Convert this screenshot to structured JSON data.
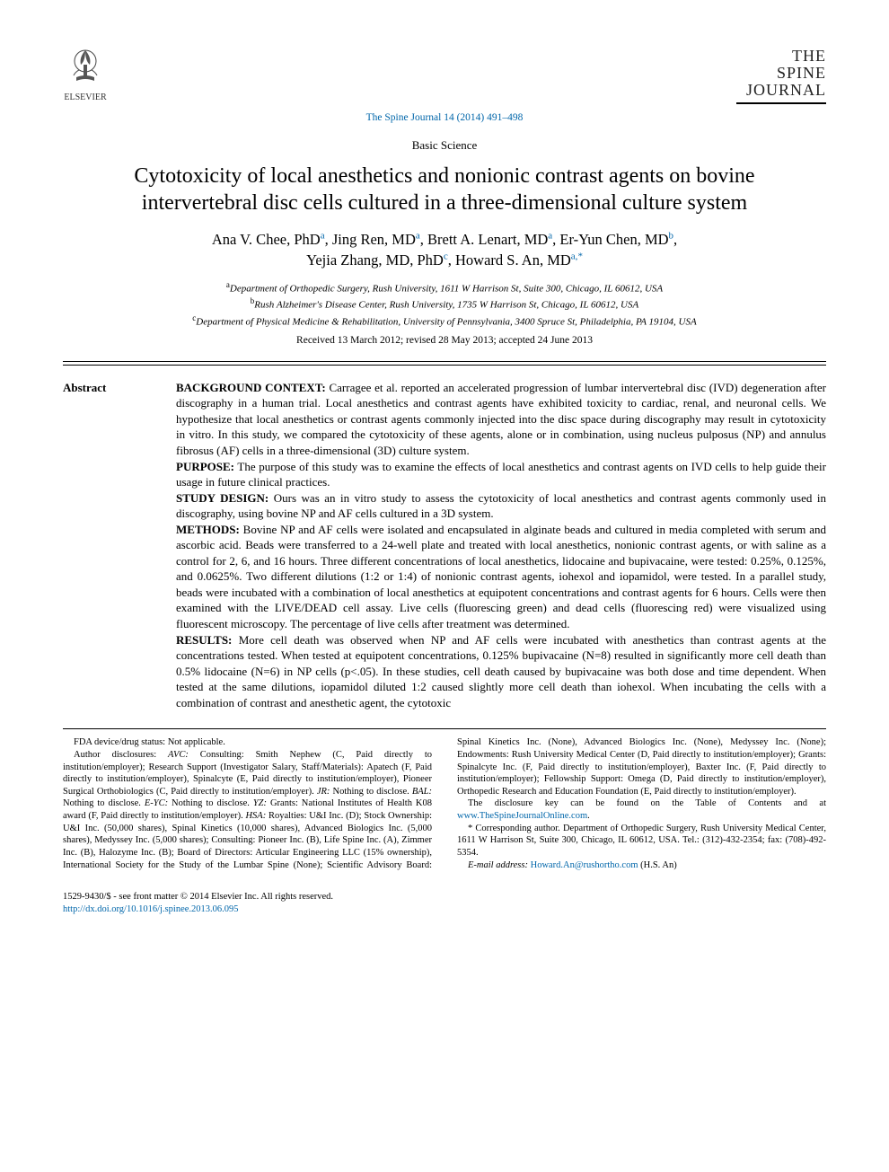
{
  "header": {
    "publisher": "ELSEVIER",
    "journal_logo_lines": [
      "THE",
      "SPINE",
      "JOURNAL"
    ],
    "citation": "The Spine Journal 14 (2014) 491–498",
    "section_label": "Basic Science"
  },
  "title": "Cytotoxicity of local anesthetics and nonionic contrast agents on bovine intervertebral disc cells cultured in a three-dimensional culture system",
  "authors_html": "Ana V. Chee, PhD<sup class=\"aff-sup\">a</sup>, Jing Ren, MD<sup class=\"aff-sup\">a</sup>, Brett A. Lenart, MD<sup class=\"aff-sup\">a</sup>, Er-Yun Chen, MD<sup class=\"aff-sup\">b</sup>,<br>Yejia Zhang, MD, PhD<sup class=\"aff-sup\">c</sup>, Howard S. An, MD<sup class=\"aff-sup\">a,</sup><sup class=\"aff-sup\">*</sup>",
  "affiliations": [
    {
      "sup": "a",
      "text": "Department of Orthopedic Surgery, Rush University, 1611 W Harrison St, Suite 300, Chicago, IL 60612, USA"
    },
    {
      "sup": "b",
      "text": "Rush Alzheimer's Disease Center, Rush University, 1735 W Harrison St, Chicago, IL 60612, USA"
    },
    {
      "sup": "c",
      "text": "Department of Physical Medicine & Rehabilitation, University of Pennsylvania, 3400 Spruce St, Philadelphia, PA 19104, USA"
    }
  ],
  "dates": "Received 13 March 2012; revised 28 May 2013; accepted 24 June 2013",
  "abstract": {
    "label": "Abstract",
    "sections": [
      {
        "head": "BACKGROUND CONTEXT:",
        "body": "Carragee et al. reported an accelerated progression of lumbar intervertebral disc (IVD) degeneration after discography in a human trial. Local anesthetics and contrast agents have exhibited toxicity to cardiac, renal, and neuronal cells. We hypothesize that local anesthetics or contrast agents commonly injected into the disc space during discography may result in cytotoxicity in vitro. In this study, we compared the cytotoxicity of these agents, alone or in combination, using nucleus pulposus (NP) and annulus fibrosus (AF) cells in a three-dimensional (3D) culture system."
      },
      {
        "head": "PURPOSE:",
        "body": "The purpose of this study was to examine the effects of local anesthetics and contrast agents on IVD cells to help guide their usage in future clinical practices."
      },
      {
        "head": "STUDY DESIGN:",
        "body": "Ours was an in vitro study to assess the cytotoxicity of local anesthetics and contrast agents commonly used in discography, using bovine NP and AF cells cultured in a 3D system."
      },
      {
        "head": "METHODS:",
        "body": "Bovine NP and AF cells were isolated and encapsulated in alginate beads and cultured in media completed with serum and ascorbic acid. Beads were transferred to a 24-well plate and treated with local anesthetics, nonionic contrast agents, or with saline as a control for 2, 6, and 16 hours. Three different concentrations of local anesthetics, lidocaine and bupivacaine, were tested: 0.25%, 0.125%, and 0.0625%. Two different dilutions (1:2 or 1:4) of nonionic contrast agents, iohexol and iopamidol, were tested. In a parallel study, beads were incubated with a combination of local anesthetics at equipotent concentrations and contrast agents for 6 hours. Cells were then examined with the LIVE/DEAD cell assay. Live cells (fluorescing green) and dead cells (fluorescing red) were visualized using fluorescent microscopy. The percentage of live cells after treatment was determined."
      },
      {
        "head": "RESULTS:",
        "body": "More cell death was observed when NP and AF cells were incubated with anesthetics than contrast agents at the concentrations tested. When tested at equipotent concentrations, 0.125% bupivacaine (N=8) resulted in significantly more cell death than 0.5% lidocaine (N=6) in NP cells (p<.05). In these studies, cell death caused by bupivacaine was both dose and time dependent. When tested at the same dilutions, iopamidol diluted 1:2 caused slightly more cell death than iohexol. When incubating the cells with a combination of contrast and anesthetic agent, the cytotoxic"
      }
    ]
  },
  "footnotes": {
    "fda": "FDA device/drug status: Not applicable.",
    "disclosures": "Author disclosures: <span class=\"fn-ital\">AVC:</span> Consulting: Smith Nephew (C, Paid directly to institution/employer); Research Support (Investigator Salary, Staff/Materials): Apatech (F, Paid directly to institution/employer), Spinalcyte (E, Paid directly to institution/employer), Pioneer Surgical Orthobiologics (C, Paid directly to institution/employer). <span class=\"fn-ital\">JR:</span> Nothing to disclose. <span class=\"fn-ital\">BAL:</span> Nothing to disclose. <span class=\"fn-ital\">E-YC:</span> Nothing to disclose. <span class=\"fn-ital\">YZ:</span> Grants: National Institutes of Health K08 award (F, Paid directly to institution/employer). <span class=\"fn-ital\">HSA:</span> Royalties: U&I Inc. (D); Stock Ownership: U&I Inc. (50,000 shares), Spinal Kinetics (10,000 shares), Advanced Biologics Inc. (5,000 shares), Medyssey Inc. (5,000 shares); Consulting: Pioneer Inc. (B), Life Spine Inc. (A), Zimmer Inc. (B), Halozyme Inc. (B); Board of Directors: Articular Engineering LLC (15% ownership), International Society for the Study of the Lumbar Spine (None); Scientific Advisory Board: Spinal Kinetics Inc. (None), Advanced Biologics Inc. (None), Medyssey Inc. (None); Endowments: Rush University Medical Center (D, Paid directly to institution/employer); Grants: Spinalcyte Inc. (F, Paid directly to institution/employer), Baxter Inc. (F, Paid directly to institution/employer); Fellowship Support: Omega (D, Paid directly to institution/employer), Orthopedic Research and Education Foundation (E, Paid directly to institution/employer).",
    "disclosure_key_pre": "The disclosure key can be found on the Table of Contents and at ",
    "disclosure_key_link": "www.TheSpineJournalOnline.com",
    "disclosure_key_post": ".",
    "corresponding": "* Corresponding author. Department of Orthopedic Surgery, Rush University Medical Center, 1611 W Harrison St, Suite 300, Chicago, IL 60612, USA. Tel.: (312)-432-2354; fax: (708)-492-5354.",
    "email_label": "E-mail address: ",
    "email": "Howard.An@rushortho.com",
    "email_attrib": " (H.S. An)"
  },
  "bottom": {
    "copyright": "1529-9430/$ - see front matter © 2014 Elsevier Inc. All rights reserved.",
    "doi": "http://dx.doi.org/10.1016/j.spinee.2013.06.095"
  },
  "colors": {
    "link": "#0066aa",
    "text": "#000000",
    "bg": "#ffffff"
  }
}
